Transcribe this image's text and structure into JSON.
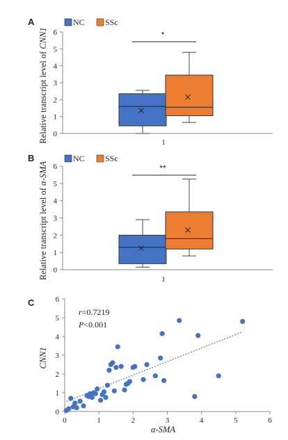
{
  "chart_data": [
    {
      "panel": "A",
      "type": "box",
      "ylabel": "Relative transcript level of CNN1",
      "ylabel_prefix": "Relative transcript level of ",
      "ylabel_gene": "CNN1",
      "categories": [
        "1"
      ],
      "ylim": [
        0,
        6
      ],
      "yticks": [
        "0",
        "1",
        "2",
        "3",
        "4",
        "5",
        "6"
      ],
      "legend": "top-left",
      "series": [
        {
          "name": "NC",
          "color": "#4472C4",
          "min": 0.0,
          "q1": 0.45,
          "median": 1.6,
          "q3": 2.35,
          "max": 2.55,
          "mean": 1.35
        },
        {
          "name": "SSc",
          "color": "#ED7D31",
          "min": 0.65,
          "q1": 1.05,
          "median": 1.55,
          "q3": 3.45,
          "max": 4.8,
          "mean": 2.15
        }
      ],
      "significance": "*"
    },
    {
      "panel": "B",
      "type": "box",
      "ylabel": "Relative transcript level of α-SMA",
      "ylabel_prefix": "Relative transcript level of ",
      "ylabel_gene": "α-SMA",
      "categories": [
        "1"
      ],
      "ylim": [
        0,
        6
      ],
      "yticks": [
        "0",
        "1",
        "2",
        "3",
        "4",
        "5",
        "6"
      ],
      "legend": "top-left",
      "series": [
        {
          "name": "NC",
          "color": "#4472C4",
          "min": 0.15,
          "q1": 0.35,
          "median": 1.3,
          "q3": 2.0,
          "max": 2.9,
          "mean": 1.25
        },
        {
          "name": "SSc",
          "color": "#ED7D31",
          "min": 0.8,
          "q1": 1.2,
          "median": 1.8,
          "q3": 3.35,
          "max": 5.25,
          "mean": 2.3
        }
      ],
      "significance": "**"
    },
    {
      "panel": "C",
      "type": "scatter",
      "xlabel": "α-SMA",
      "ylabel": "CNN1",
      "xlim": [
        0,
        6
      ],
      "ylim": [
        0,
        6
      ],
      "xticks": [
        "0",
        "1",
        "2",
        "3",
        "4",
        "5",
        "6"
      ],
      "yticks": [
        "0",
        "1",
        "2",
        "3",
        "4",
        "5",
        "6"
      ],
      "color": "#4472C4",
      "annotation_r_label": "r",
      "annotation_r_value": "=0.7219",
      "annotation_p_label": "P",
      "annotation_p_value": "<0.001",
      "trendline": {
        "slope": 0.72,
        "intercept": 0.5
      },
      "x": [
        0.05,
        0.12,
        0.18,
        0.25,
        0.3,
        0.35,
        0.45,
        0.55,
        0.65,
        0.7,
        0.75,
        0.8,
        0.85,
        0.9,
        0.95,
        1.05,
        1.1,
        1.15,
        1.2,
        1.25,
        1.3,
        1.35,
        1.4,
        1.45,
        1.5,
        1.55,
        1.65,
        1.75,
        1.8,
        1.85,
        1.9,
        2.0,
        2.05,
        2.3,
        2.4,
        2.65,
        2.8,
        2.85,
        2.9,
        3.35,
        3.8,
        3.9,
        4.5,
        5.2
      ],
      "y": [
        0.05,
        0.15,
        0.7,
        0.25,
        0.45,
        0.2,
        0.55,
        0.3,
        0.85,
        0.8,
        0.95,
        0.75,
        1.0,
        0.95,
        1.2,
        0.6,
        0.9,
        1.05,
        0.75,
        1.4,
        2.2,
        2.5,
        2.6,
        1.1,
        2.35,
        3.45,
        2.4,
        1.15,
        1.45,
        1.5,
        1.6,
        2.35,
        2.4,
        1.7,
        2.5,
        1.9,
        2.85,
        4.15,
        1.65,
        4.85,
        0.8,
        4.05,
        1.9,
        4.8
      ]
    }
  ],
  "panels": [
    {
      "label": "A",
      "trend": "1",
      "legend": [
        "NC",
        "SSc"
      ]
    },
    {
      "label": "B",
      "trend": "1",
      "legend": [
        "NC",
        "SSc"
      ]
    },
    {
      "label": "C"
    }
  ]
}
